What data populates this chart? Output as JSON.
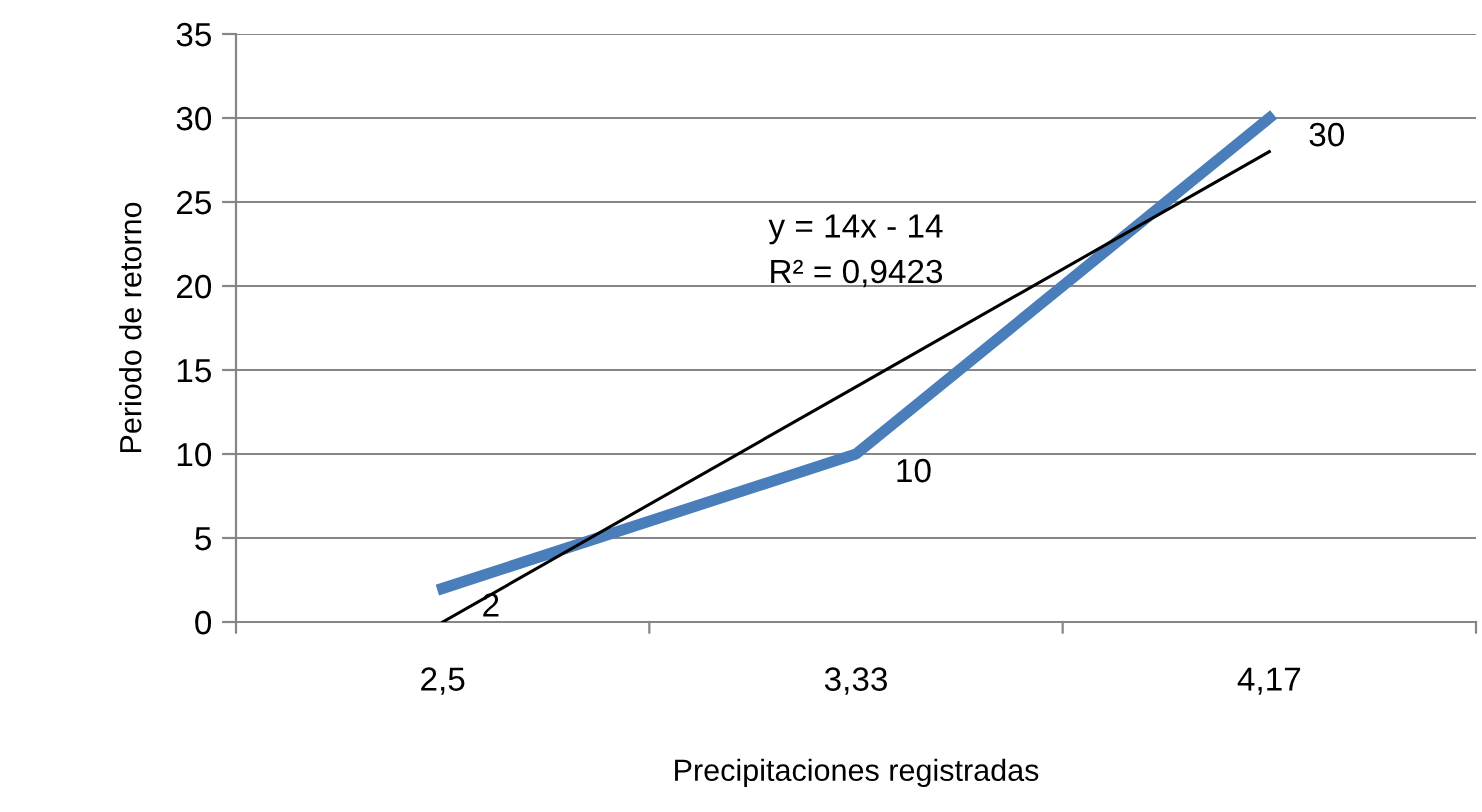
{
  "chart_data": {
    "type": "line",
    "xlabel": "Precipitaciones registradas",
    "ylabel": "Periodo de retorno",
    "categories": [
      "2,5",
      "3,33",
      "4,17"
    ],
    "series": [
      {
        "color": "#4a7ebb",
        "values": [
          2,
          10,
          30
        ],
        "value_labels": [
          "2",
          "10",
          "30"
        ]
      },
      {
        "type": "line",
        "color": "#000000",
        "values": [
          0,
          14,
          28
        ]
      }
    ],
    "ylim": [
      0,
      35
    ],
    "yticks": [
      0,
      5,
      10,
      15,
      20,
      25,
      30,
      35
    ],
    "grid": "y",
    "legend": false,
    "marker": "none",
    "annotations": [
      "y = 14x - 14\nR² = 0,9423"
    ]
  }
}
